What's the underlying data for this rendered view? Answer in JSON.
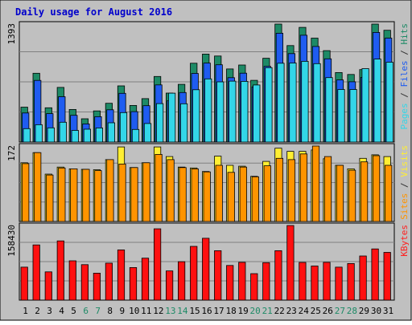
{
  "chart_data": {
    "type": "bar",
    "title": "Daily usage for August 2016",
    "categories": [
      "1",
      "2",
      "3",
      "4",
      "5",
      "6",
      "7",
      "8",
      "9",
      "10",
      "11",
      "12",
      "13",
      "14",
      "15",
      "16",
      "17",
      "18",
      "19",
      "20",
      "21",
      "22",
      "23",
      "24",
      "25",
      "26",
      "27",
      "28",
      "29",
      "30",
      "31"
    ],
    "weekend_days": [
      "6",
      "7",
      "13",
      "14",
      "20",
      "21",
      "27",
      "28"
    ],
    "panels": [
      {
        "name": "top",
        "ymax_label": "1393",
        "ymax": 1393,
        "ylabel_parts": [
          {
            "text": "Pages",
            "color": "#33d6e8"
          },
          {
            "text": " / ",
            "color": "#303030"
          },
          {
            "text": "Files",
            "color": "#1f5cf0"
          },
          {
            "text": " / ",
            "color": "#303030"
          },
          {
            "text": "Hits",
            "color": "#1d8a66"
          }
        ],
        "series": [
          {
            "name": "Hits",
            "color": "#1d8a66",
            "values": [
              412,
              812,
              405,
              645,
              385,
              275,
              368,
              458,
              663,
              432,
              513,
              774,
              578,
              681,
              931,
              1039,
              1016,
              863,
              910,
              729,
              989,
              1393,
              1139,
              1354,
              1227,
              1079,
              821,
              798,
              856,
              1393,
              1320
            ]
          },
          {
            "name": "Files",
            "color": "#1f5cf0",
            "values": [
              343,
              728,
              335,
              535,
              316,
              214,
              299,
              381,
              575,
              359,
              429,
              675,
              488,
              585,
              810,
              932,
              913,
              760,
              813,
              651,
              894,
              1285,
              1044,
              1261,
              1129,
              983,
              733,
              712,
              764,
              1294,
              1227
            ]
          },
          {
            "name": "Pages",
            "color": "#33d6e8",
            "values": [
              158,
              205,
              168,
              234,
              137,
              152,
              167,
              227,
              348,
              149,
              219,
              454,
              577,
              452,
              618,
              746,
              711,
              719,
              716,
              674,
              878,
              931,
              933,
              953,
              926,
              761,
              621,
              621,
              867,
              980,
              943
            ]
          }
        ]
      },
      {
        "name": "middle",
        "ymax_label": "172",
        "ymax": 172,
        "ylabel_parts": [
          {
            "text": "Sites",
            "color": "#ff9400"
          },
          {
            "text": " / ",
            "color": "#303030"
          },
          {
            "text": "Visits",
            "color": "#ffee33"
          }
        ],
        "series": [
          {
            "name": "Visits",
            "color": "#ffee33",
            "values": [
              134,
              157,
              108,
              124,
              120,
              119,
              118,
              141,
              170,
              123,
              134,
              170,
              148,
              124,
              122,
              114,
              149,
              128,
              126,
              103,
              137,
              167,
              160,
              160,
              163,
              143,
              128,
              120,
              144,
              152,
              148
            ]
          },
          {
            "name": "Sites",
            "color": "#ff9400",
            "values": [
              132,
              157,
              106,
              122,
              120,
              119,
              116,
              141,
              131,
              123,
              134,
              153,
              141,
              123,
              120,
              113,
              128,
              112,
              124,
              102,
              127,
              144,
              141,
              154,
              172,
              148,
              128,
              117,
              136,
              150,
              128
            ]
          }
        ]
      },
      {
        "name": "bottom",
        "ymax_label": "158430",
        "ymax": 158430,
        "ylabel_parts": [
          {
            "text": "KBytes",
            "color": "#ff2020"
          }
        ],
        "series": [
          {
            "name": "KBytes",
            "color": "#ff1010",
            "values": [
              69960,
              117120,
              60000,
              125730,
              83400,
              75240,
              57300,
              78600,
              106560,
              69120,
              89160,
              151500,
              62000,
              81600,
              114120,
              131340,
              104940,
              73650,
              80160,
              56220,
              79560,
              104940,
              158430,
              80040,
              72360,
              80160,
              69960,
              77760,
              93750,
              108720,
              101400
            ]
          }
        ]
      }
    ],
    "grid": true,
    "legend": "right-vertical"
  }
}
